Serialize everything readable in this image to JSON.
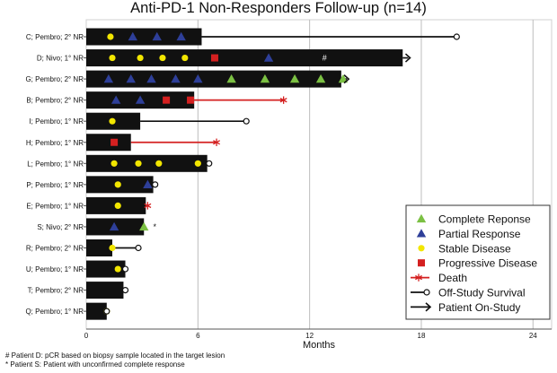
{
  "chart_data": {
    "type": "swimmer",
    "title": "Anti-PD-1 Non-Responders Follow-up (n=14)",
    "xlabel": "Months",
    "xlim": [
      0,
      25
    ],
    "x_ticks": [
      "0",
      "6",
      "12",
      "18",
      "24"
    ],
    "x_tick_values": [
      0,
      6,
      12,
      18,
      24
    ],
    "grid": "vertical",
    "legend_position": "bottom-right",
    "colors": {
      "bar": "#111111",
      "complete_response": "#7bc043",
      "partial_response": "#2e3f99",
      "stable_disease": "#f2e600",
      "progressive_disease": "#d42020",
      "death": "#d42020",
      "line": "#111111",
      "grid": "#bdbdbd"
    },
    "legend": [
      {
        "key": "complete_response",
        "label": "Complete Reponse",
        "symbol": "triangle"
      },
      {
        "key": "partial_response",
        "label": "Partial Response",
        "symbol": "triangle"
      },
      {
        "key": "stable_disease",
        "label": "Stable Disease",
        "symbol": "circle"
      },
      {
        "key": "progressive_disease",
        "label": "Progressive Disease",
        "symbol": "square"
      },
      {
        "key": "death",
        "label": "Death",
        "symbol": "red-line-star"
      },
      {
        "key": "off_study",
        "label": "Off-Study Survival",
        "symbol": "line-open-circle"
      },
      {
        "key": "on_study",
        "label": "Patient On-Study",
        "symbol": "arrow"
      }
    ],
    "patients": [
      {
        "label": "C; Pembro; 2° NR",
        "bar_end": 6.2,
        "follow_end": 19.9,
        "end": "off_study",
        "events": [
          {
            "type": "stable_disease",
            "x": 1.3
          },
          {
            "type": "partial_response",
            "x": 2.5
          },
          {
            "type": "partial_response",
            "x": 3.8
          },
          {
            "type": "partial_response",
            "x": 5.1
          }
        ]
      },
      {
        "label": "D; Nivo; 1° NR",
        "bar_end": 17.0,
        "follow_end": 17.3,
        "end": "on_study",
        "note": "#",
        "events": [
          {
            "type": "stable_disease",
            "x": 1.4
          },
          {
            "type": "stable_disease",
            "x": 2.9
          },
          {
            "type": "stable_disease",
            "x": 4.1
          },
          {
            "type": "stable_disease",
            "x": 5.3
          },
          {
            "type": "progressive_disease",
            "x": 6.9
          },
          {
            "type": "partial_response",
            "x": 9.8
          }
        ]
      },
      {
        "label": "G; Pembro; 2° NR",
        "bar_end": 13.7,
        "follow_end": 14.0,
        "end": "on_study",
        "events": [
          {
            "type": "partial_response",
            "x": 1.2
          },
          {
            "type": "partial_response",
            "x": 2.4
          },
          {
            "type": "partial_response",
            "x": 3.5
          },
          {
            "type": "partial_response",
            "x": 4.8
          },
          {
            "type": "partial_response",
            "x": 6.0
          },
          {
            "type": "complete_response",
            "x": 7.8
          },
          {
            "type": "complete_response",
            "x": 9.6
          },
          {
            "type": "complete_response",
            "x": 11.2
          },
          {
            "type": "complete_response",
            "x": 12.6
          },
          {
            "type": "complete_response",
            "x": 13.8
          }
        ]
      },
      {
        "label": "B; Pembro; 2° NR",
        "bar_end": 5.8,
        "follow_end": 10.6,
        "end": "death",
        "events": [
          {
            "type": "partial_response",
            "x": 1.6
          },
          {
            "type": "partial_response",
            "x": 2.9
          },
          {
            "type": "progressive_disease",
            "x": 4.3
          },
          {
            "type": "progressive_disease",
            "x": 5.6
          }
        ]
      },
      {
        "label": "I; Pembro; 1° NR",
        "bar_end": 2.9,
        "follow_end": 8.6,
        "end": "off_study",
        "events": [
          {
            "type": "stable_disease",
            "x": 1.4
          }
        ]
      },
      {
        "label": "H; Pembro; 1° NR",
        "bar_end": 2.4,
        "follow_end": 7.0,
        "end": "death",
        "events": [
          {
            "type": "progressive_disease",
            "x": 1.5
          }
        ]
      },
      {
        "label": "L; Pembro; 1° NR",
        "bar_end": 6.5,
        "follow_end": 6.6,
        "end": "off_study",
        "events": [
          {
            "type": "stable_disease",
            "x": 1.5
          },
          {
            "type": "stable_disease",
            "x": 2.8
          },
          {
            "type": "stable_disease",
            "x": 3.9
          },
          {
            "type": "stable_disease",
            "x": 6.0
          }
        ]
      },
      {
        "label": "P; Pembro; 1° NR",
        "bar_end": 3.6,
        "follow_end": 3.7,
        "end": "off_study",
        "events": [
          {
            "type": "stable_disease",
            "x": 1.7
          },
          {
            "type": "partial_response",
            "x": 3.3
          }
        ]
      },
      {
        "label": "E; Pembro; 1° NR",
        "bar_end": 3.2,
        "follow_end": 3.3,
        "end": "death",
        "events": [
          {
            "type": "stable_disease",
            "x": 1.7
          }
        ]
      },
      {
        "label": "S; Nivo; 2° NR",
        "bar_end": 3.1,
        "follow_end": 3.1,
        "end": "none",
        "note": "*",
        "events": [
          {
            "type": "partial_response",
            "x": 1.5
          },
          {
            "type": "complete_response",
            "x": 3.1
          }
        ]
      },
      {
        "label": "R; Pembro; 2° NR",
        "bar_end": 1.4,
        "follow_end": 2.8,
        "end": "off_study",
        "events": [
          {
            "type": "stable_disease",
            "x": 1.4
          }
        ]
      },
      {
        "label": "U; Pembro; 1° NR",
        "bar_end": 2.1,
        "follow_end": 2.1,
        "end": "off_study",
        "events": [
          {
            "type": "stable_disease",
            "x": 1.7
          }
        ]
      },
      {
        "label": "T; Pembro; 2° NR",
        "bar_end": 2.0,
        "follow_end": 2.1,
        "end": "off_study",
        "events": []
      },
      {
        "label": "Q; Pembro; 1° NR",
        "bar_end": 1.1,
        "follow_end": 1.1,
        "end": "off_study",
        "events": [
          {
            "type": "stable_disease",
            "x": 1.1
          }
        ]
      }
    ]
  },
  "footnotes": [
    "# Patient D: pCR based on biopsy sample located in the target lesion",
    "* Patient S: Patient with unconfirmed complete response"
  ]
}
